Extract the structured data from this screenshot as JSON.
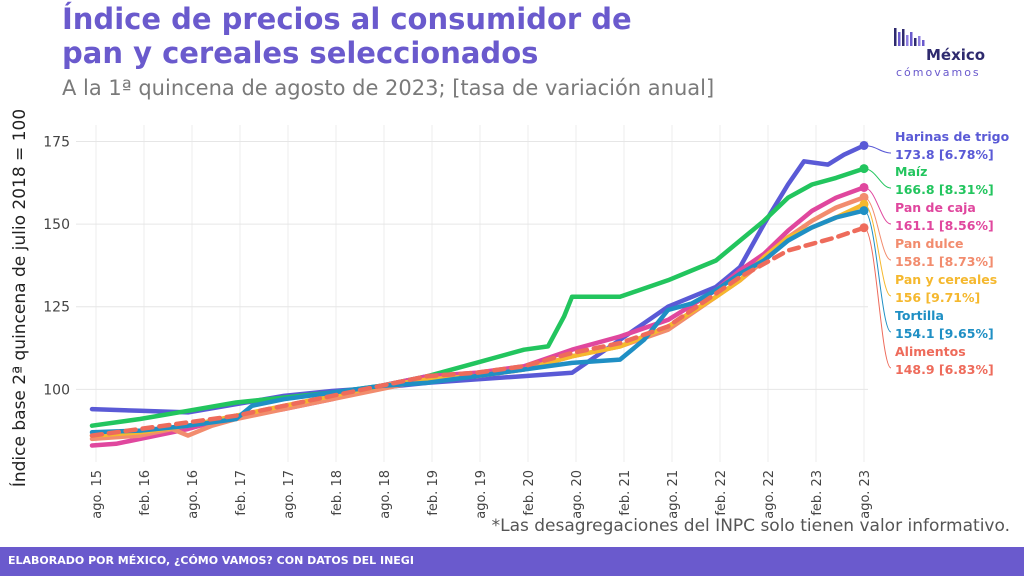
{
  "header": {
    "title": "Índice de precios al consumidor de pan y cereales seleccionados",
    "subtitle": "A la 1ª quincena de agosto de 2023; [tasa de variación anual]"
  },
  "logo": {
    "line1": "México",
    "line2": "cómovamos"
  },
  "footnote": "*Las desagregaciones del INPC solo tienen valor informativo.",
  "footer": {
    "text": "ELABORADO POR MÉXICO, ¿CÓMO VAMOS? CON DATOS DEL INEGI"
  },
  "chart_data": {
    "type": "line",
    "title": "Índice de precios al consumidor de pan y cereales seleccionados",
    "ylabel": "Índice base 2ª quincena de julio 2018 = 100",
    "xlabel": "",
    "ylim": [
      78,
      180
    ],
    "yticks": [
      100,
      125,
      150,
      175
    ],
    "grid": true,
    "x_range": [
      0,
      193
    ],
    "x_ticks": [
      {
        "x": 1,
        "label": "ago. 15"
      },
      {
        "x": 13,
        "label": "feb. 16"
      },
      {
        "x": 25,
        "label": "ago. 16"
      },
      {
        "x": 37,
        "label": "feb. 17"
      },
      {
        "x": 49,
        "label": "ago. 17"
      },
      {
        "x": 61,
        "label": "feb. 18"
      },
      {
        "x": 73,
        "label": "ago. 18"
      },
      {
        "x": 85,
        "label": "feb. 19"
      },
      {
        "x": 97,
        "label": "ago. 19"
      },
      {
        "x": 109,
        "label": "feb. 20"
      },
      {
        "x": 121,
        "label": "ago. 20"
      },
      {
        "x": 133,
        "label": "feb. 21"
      },
      {
        "x": 145,
        "label": "ago. 21"
      },
      {
        "x": 157,
        "label": "feb. 22"
      },
      {
        "x": 169,
        "label": "ago. 22"
      },
      {
        "x": 181,
        "label": "feb. 23"
      },
      {
        "x": 193,
        "label": "ago. 23"
      }
    ],
    "series": [
      {
        "name": "Harinas de trigo",
        "color": "#5a5ad6",
        "dashed": false,
        "last_label": "173.8 [6.78%]",
        "points": [
          [
            0,
            94
          ],
          [
            12,
            93.5
          ],
          [
            24,
            93
          ],
          [
            36,
            95.5
          ],
          [
            48,
            98
          ],
          [
            60,
            99.5
          ],
          [
            72,
            100.5
          ],
          [
            84,
            102
          ],
          [
            96,
            103
          ],
          [
            108,
            104
          ],
          [
            120,
            105
          ],
          [
            132,
            115
          ],
          [
            144,
            125
          ],
          [
            156,
            131
          ],
          [
            162,
            137
          ],
          [
            168,
            150
          ],
          [
            174,
            162
          ],
          [
            178,
            169
          ],
          [
            184,
            168
          ],
          [
            188,
            171
          ],
          [
            193,
            173.8
          ]
        ]
      },
      {
        "name": "Maíz",
        "color": "#22c55e",
        "dashed": false,
        "last_label": "166.8 [8.31%]",
        "points": [
          [
            0,
            89
          ],
          [
            12,
            91
          ],
          [
            24,
            93.5
          ],
          [
            36,
            96
          ],
          [
            48,
            97.5
          ],
          [
            60,
            99
          ],
          [
            72,
            101
          ],
          [
            84,
            104
          ],
          [
            96,
            108
          ],
          [
            108,
            112
          ],
          [
            114,
            113
          ],
          [
            118,
            122
          ],
          [
            120,
            128
          ],
          [
            132,
            128
          ],
          [
            144,
            133
          ],
          [
            156,
            139
          ],
          [
            162,
            145
          ],
          [
            168,
            151
          ],
          [
            174,
            158
          ],
          [
            180,
            162
          ],
          [
            186,
            164
          ],
          [
            193,
            166.8
          ]
        ]
      },
      {
        "name": "Pan de caja",
        "color": "#e0479e",
        "dashed": false,
        "last_label": "161.1 [8.56%]",
        "points": [
          [
            0,
            83
          ],
          [
            6,
            83.5
          ],
          [
            12,
            85
          ],
          [
            24,
            88
          ],
          [
            36,
            92
          ],
          [
            48,
            94
          ],
          [
            60,
            97
          ],
          [
            72,
            101
          ],
          [
            84,
            104
          ],
          [
            96,
            105
          ],
          [
            108,
            107
          ],
          [
            120,
            112
          ],
          [
            132,
            116
          ],
          [
            144,
            121
          ],
          [
            156,
            130
          ],
          [
            162,
            136
          ],
          [
            168,
            141
          ],
          [
            174,
            148
          ],
          [
            180,
            154
          ],
          [
            186,
            158
          ],
          [
            193,
            161.1
          ]
        ]
      },
      {
        "name": "Pan dulce",
        "color": "#f28c6e",
        "dashed": false,
        "last_label": "158.1 [8.73%]",
        "points": [
          [
            0,
            85
          ],
          [
            12,
            86
          ],
          [
            20,
            88
          ],
          [
            24,
            86
          ],
          [
            30,
            89
          ],
          [
            36,
            91
          ],
          [
            48,
            94
          ],
          [
            60,
            97
          ],
          [
            72,
            100
          ],
          [
            84,
            103
          ],
          [
            96,
            104
          ],
          [
            108,
            106
          ],
          [
            120,
            110
          ],
          [
            132,
            113
          ],
          [
            144,
            118
          ],
          [
            156,
            128
          ],
          [
            162,
            133
          ],
          [
            168,
            139
          ],
          [
            174,
            146
          ],
          [
            180,
            151
          ],
          [
            186,
            155
          ],
          [
            193,
            158.1
          ]
        ]
      },
      {
        "name": "Pan y cereales",
        "color": "#f5b82e",
        "dashed": false,
        "last_label": "156 [9.71%]",
        "points": [
          [
            0,
            86
          ],
          [
            12,
            87
          ],
          [
            24,
            89
          ],
          [
            36,
            92
          ],
          [
            48,
            95
          ],
          [
            60,
            98
          ],
          [
            72,
            101
          ],
          [
            84,
            103
          ],
          [
            96,
            104
          ],
          [
            108,
            106
          ],
          [
            120,
            110
          ],
          [
            132,
            113
          ],
          [
            144,
            119
          ],
          [
            156,
            128
          ],
          [
            162,
            133
          ],
          [
            168,
            140
          ],
          [
            174,
            146
          ],
          [
            180,
            149
          ],
          [
            186,
            152
          ],
          [
            193,
            156
          ]
        ]
      },
      {
        "name": "Tortilla",
        "color": "#1f8fc4",
        "dashed": false,
        "last_label": "154.1 [9.65%]",
        "points": [
          [
            0,
            87
          ],
          [
            12,
            87.5
          ],
          [
            24,
            89
          ],
          [
            36,
            91
          ],
          [
            40,
            95
          ],
          [
            48,
            97
          ],
          [
            60,
            99
          ],
          [
            72,
            101
          ],
          [
            84,
            102
          ],
          [
            96,
            104
          ],
          [
            108,
            106
          ],
          [
            120,
            108
          ],
          [
            132,
            109
          ],
          [
            138,
            115
          ],
          [
            144,
            124
          ],
          [
            150,
            126
          ],
          [
            156,
            130
          ],
          [
            162,
            135
          ],
          [
            168,
            139
          ],
          [
            174,
            145
          ],
          [
            180,
            149
          ],
          [
            186,
            152
          ],
          [
            193,
            154.1
          ]
        ]
      },
      {
        "name": "Alimentos",
        "color": "#ee6b5b",
        "dashed": true,
        "last_label": "148.9 [6.83%]",
        "points": [
          [
            0,
            86
          ],
          [
            12,
            88
          ],
          [
            24,
            90
          ],
          [
            36,
            92
          ],
          [
            48,
            95
          ],
          [
            60,
            98
          ],
          [
            72,
            101
          ],
          [
            84,
            104
          ],
          [
            96,
            105
          ],
          [
            108,
            107
          ],
          [
            120,
            111
          ],
          [
            132,
            114
          ],
          [
            144,
            119
          ],
          [
            156,
            129
          ],
          [
            162,
            134
          ],
          [
            168,
            138
          ],
          [
            174,
            142
          ],
          [
            180,
            144
          ],
          [
            186,
            146
          ],
          [
            193,
            148.9
          ]
        ]
      }
    ]
  }
}
